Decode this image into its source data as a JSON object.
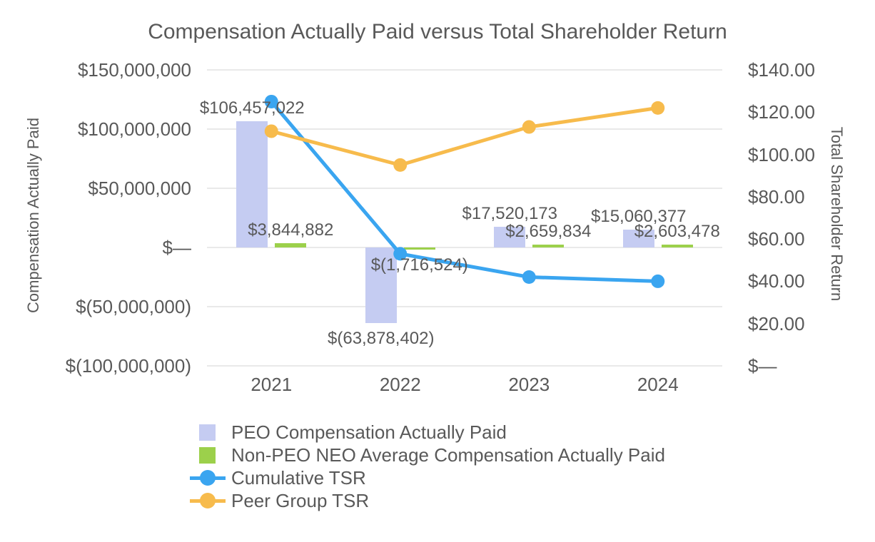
{
  "title": "Compensation Actually Paid versus Total Shareholder Return",
  "colors": {
    "text": "#595959",
    "gridline": "#e9e9e9",
    "peo_bar": "#c5ccf2",
    "non_peo_bar": "#9cd04b",
    "cumulative_tsr": "#3aa5f0",
    "peer_group_tsr": "#f7bb4c"
  },
  "chart_data": {
    "type": "combo-bar-line",
    "title": "Compensation Actually Paid versus Total Shareholder Return",
    "categories": [
      "2021",
      "2022",
      "2023",
      "2024"
    ],
    "bar_series": [
      {
        "name": "PEO Compensation Actually Paid",
        "color": "#c5ccf2",
        "axis": "left",
        "values": [
          106457022,
          -63878402,
          17520173,
          15060377
        ],
        "data_labels": [
          "$106,457,022",
          "$(63,878,402)",
          "$17,520,173",
          "$15,060,377"
        ]
      },
      {
        "name": "Non-PEO NEO Average Compensation Actually Paid",
        "color": "#9cd04b",
        "axis": "left",
        "values": [
          3844882,
          -1716524,
          2659834,
          2603478
        ],
        "data_labels": [
          "$3,844,882",
          "$(1,716,524)",
          "$2,659,834",
          "$2,603,478"
        ]
      }
    ],
    "line_series": [
      {
        "name": "Cumulative TSR",
        "color": "#3aa5f0",
        "axis": "right",
        "values": [
          125,
          53,
          42,
          40
        ]
      },
      {
        "name": "Peer Group TSR",
        "color": "#f7bb4c",
        "axis": "right",
        "values": [
          111,
          95,
          113,
          122
        ]
      }
    ],
    "left_axis": {
      "title": "Compensation Actually Paid",
      "tick_labels": [
        "$150,000,000",
        "$100,000,000",
        "$50,000,000",
        "$—",
        "$(50,000,000)",
        "$(100,000,000)"
      ],
      "tick_values": [
        150000000,
        100000000,
        50000000,
        0,
        -50000000,
        -100000000
      ],
      "range": [
        -100000000,
        150000000
      ]
    },
    "right_axis": {
      "title": "Total Shareholder Return",
      "tick_labels": [
        "$140.00",
        "$120.00",
        "$100.00",
        "$80.00",
        "$60.00",
        "$40.00",
        "$20.00",
        "$—"
      ],
      "tick_values": [
        140,
        120,
        100,
        80,
        60,
        40,
        20,
        0
      ],
      "range": [
        0,
        140
      ]
    },
    "legend": {
      "position": "bottom-left",
      "entries": [
        "PEO Compensation Actually Paid",
        "Non-PEO NEO Average Compensation Actually Paid",
        "Cumulative TSR",
        "Peer Group TSR"
      ]
    },
    "grid": true
  }
}
